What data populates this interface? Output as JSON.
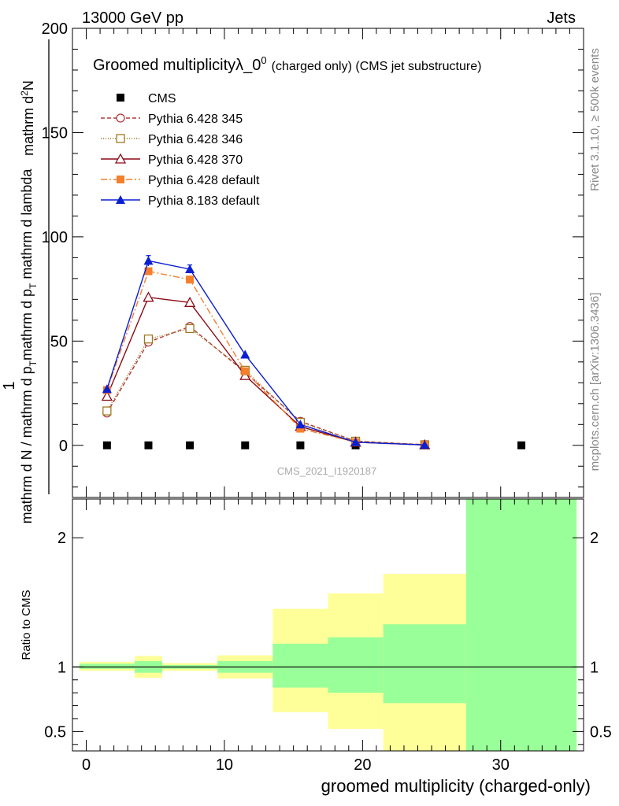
{
  "header": {
    "energy_label": "13000 GeV pp",
    "category_label": "Jets"
  },
  "side_labels": {
    "rivet": "Rivet 3.1.10, ≥ 500k events",
    "mcplots": "mcplots.cern.ch [arXiv:1306.3436]"
  },
  "chart_data": [
    {
      "type": "line",
      "title": "Groomed multiplicityλ_0⁰",
      "title_main": "Groomed multiplicityλ_0",
      "title_sup": "0",
      "title_suffix": "(charged only) (CMS jet substructure)",
      "watermark": "CMS_2021_I1920187",
      "ylabel": "1 / mathrm d N / mathrm d p_T mathrm d p_T mathrm d lambda ; mathrm d²N",
      "ylabel_parts": {
        "numerator_prefix": "mathrm d",
        "numerator_sup": "2",
        "numerator_suffix": "N",
        "numerator_one": "1",
        "denominator_left": "mathrm d N / mathrm d p",
        "denominator_sub1": "T",
        "denominator_mid": "mathrm d p",
        "denominator_sub2": "T",
        "denominator_right": " mathrm d lambda"
      },
      "xlim": [
        -1,
        36
      ],
      "ylim": [
        -25,
        200
      ],
      "yticks": [
        0,
        50,
        100,
        150,
        200
      ],
      "legend_position": "top-left",
      "series": [
        {
          "name": "CMS",
          "color": "#000000",
          "marker": "square-filled",
          "dash": "",
          "x": [
            1.5,
            4.5,
            7.5,
            11.5,
            15.5,
            19.5,
            24.5,
            31.5
          ],
          "y": [
            0,
            0,
            0,
            0,
            0,
            0,
            0,
            0
          ]
        },
        {
          "name": "Pythia 6.428 345",
          "color": "#b03a3a",
          "marker": "circle-open",
          "dash": "5,3",
          "x": [
            1.5,
            4.5,
            7.5,
            11.5,
            15.5,
            19.5,
            24.5
          ],
          "y": [
            15.5,
            49.5,
            57,
            35,
            11.5,
            2,
            0.3
          ]
        },
        {
          "name": "Pythia 6.428 346",
          "color": "#a07820",
          "marker": "square-open",
          "dash": "1,2",
          "x": [
            1.5,
            4.5,
            7.5,
            11.5,
            15.5,
            19.5,
            24.5
          ],
          "y": [
            16.5,
            51,
            56,
            36,
            11,
            2,
            0.3
          ]
        },
        {
          "name": "Pythia 6.428 370",
          "color": "#8b0a16",
          "marker": "triangle-open",
          "dash": "",
          "x": [
            1.5,
            4.5,
            7.5,
            11.5,
            15.5,
            19.5,
            24.5
          ],
          "y": [
            23.5,
            71,
            68.5,
            33.5,
            9,
            1.5,
            0.2
          ]
        },
        {
          "name": "Pythia 6.428 default",
          "color": "#f57f2a",
          "marker": "square-filled",
          "dash": "8,3,2,3",
          "x": [
            1.5,
            4.5,
            7.5,
            11.5,
            15.5,
            19.5,
            24.5
          ],
          "y": [
            26.5,
            83.5,
            79.5,
            35.5,
            8,
            1.5,
            0.2
          ]
        },
        {
          "name": "Pythia 8.183 default",
          "color": "#0a1ed2",
          "marker": "triangle-filled",
          "dash": "",
          "x": [
            1.5,
            4.5,
            7.5,
            11.5,
            15.5,
            19.5,
            24.5
          ],
          "y": [
            27,
            88.5,
            84.5,
            43.5,
            10,
            1.5,
            0.2
          ]
        }
      ]
    },
    {
      "type": "area",
      "title": "Ratio to CMS",
      "ylabel": "Ratio to CMS",
      "xlabel": "groomed multiplicity (charged-only)",
      "xlim": [
        -1,
        36
      ],
      "ylim": [
        0.35,
        2.3
      ],
      "yticks": [
        0.5,
        1,
        2
      ],
      "xticks": [
        0,
        10,
        20,
        30
      ],
      "bins": [
        {
          "lo": -0.5,
          "hi": 3.5,
          "inner": [
            0.985,
            1.025
          ],
          "outer": [
            0.97,
            1.04
          ]
        },
        {
          "lo": 3.5,
          "hi": 5.5,
          "inner": [
            0.955,
            1.045
          ],
          "outer": [
            0.915,
            1.085
          ]
        },
        {
          "lo": 5.5,
          "hi": 9.5,
          "inner": [
            0.985,
            1.015
          ],
          "outer": [
            0.97,
            1.03
          ]
        },
        {
          "lo": 9.5,
          "hi": 13.5,
          "inner": [
            0.955,
            1.045
          ],
          "outer": [
            0.91,
            1.09
          ]
        },
        {
          "lo": 13.5,
          "hi": 17.5,
          "inner": [
            0.84,
            1.18
          ],
          "outer": [
            0.65,
            1.45
          ]
        },
        {
          "lo": 17.5,
          "hi": 21.5,
          "inner": [
            0.8,
            1.23
          ],
          "outer": [
            0.52,
            1.57
          ]
        },
        {
          "lo": 21.5,
          "hi": 27.5,
          "inner": [
            0.72,
            1.33
          ],
          "outer": [
            0.35,
            1.72
          ]
        },
        {
          "lo": 27.5,
          "hi": 35.5,
          "inner": [
            0.35,
            2.3
          ],
          "outer": [
            0.35,
            2.3
          ]
        }
      ],
      "colors": {
        "inner": "#99ff99",
        "outer": "#ffff99"
      }
    }
  ]
}
